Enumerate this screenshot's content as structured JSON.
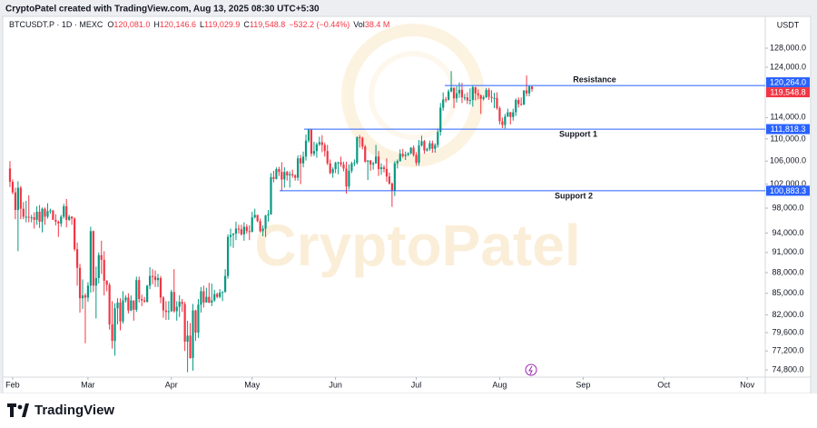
{
  "top_note": "CryptoPatel created with TradingView.com, Aug 13, 2025 08:30 UTC+5:30",
  "chart_data": {
    "type": "candlestick",
    "symbol": "BTCUSDT.P · 1D · MEXC",
    "ohlc_readout": [
      {
        "label": "O",
        "value": "120,081.0"
      },
      {
        "label": "H",
        "value": "120,146.6"
      },
      {
        "label": "L",
        "value": "119,029.9"
      },
      {
        "label": "C",
        "value": "119,548.8"
      }
    ],
    "change": "−532.2 (−0.44%)",
    "volume": {
      "label": "Vol",
      "value": "38.4 M"
    },
    "currency": "USDT",
    "watermark": "CryptoPatel",
    "up_color": "#089981",
    "down_color": "#f23645",
    "level_color": "#2962ff",
    "log_scale": true,
    "grid": false,
    "xlim": [
      -3.7,
      280.7
    ],
    "xticks": [
      {
        "value": 1,
        "label": "Feb"
      },
      {
        "value": 29,
        "label": "Mar"
      },
      {
        "value": 60,
        "label": "Apr"
      },
      {
        "value": 90,
        "label": "May"
      },
      {
        "value": 121,
        "label": "Jun"
      },
      {
        "value": 151,
        "label": "Jul"
      },
      {
        "value": 182,
        "label": "Aug"
      },
      {
        "value": 213,
        "label": "Sep"
      },
      {
        "value": 243,
        "label": "Oct"
      },
      {
        "value": 274,
        "label": "Nov"
      }
    ],
    "ylim": [
      73900,
      130950
    ],
    "yticks": [
      {
        "value": 128000,
        "label": "128,000.0"
      },
      {
        "value": 124000,
        "label": "124,000.0"
      },
      {
        "value": 114000,
        "label": "114,000.0"
      },
      {
        "value": 110000,
        "label": "110,000.0"
      },
      {
        "value": 106000,
        "label": "106,000.0"
      },
      {
        "value": 102000,
        "label": "102,000.0"
      },
      {
        "value": 98000,
        "label": "98,000.0"
      },
      {
        "value": 94000,
        "label": "94,000.0"
      },
      {
        "value": 91000,
        "label": "91,000.0"
      },
      {
        "value": 88000,
        "label": "88,000.0"
      },
      {
        "value": 85000,
        "label": "85,000.0"
      },
      {
        "value": 82000,
        "label": "82,000.0"
      },
      {
        "value": 79600,
        "label": "79,600.0"
      },
      {
        "value": 77200,
        "label": "77,200.0"
      },
      {
        "value": 74800,
        "label": "74,800.0"
      }
    ],
    "levels": [
      {
        "name": "Resistance",
        "value": 120264,
        "label": "120,264.0"
      },
      {
        "name": "Support 1",
        "value": 111818.3,
        "label": "111,818.3"
      },
      {
        "name": "Support 2",
        "value": 100883.3,
        "label": "100,883.3"
      }
    ],
    "last_price": {
      "value": 119548.8,
      "label": "119,548.8"
    },
    "ohlc": [
      [
        104700,
        106000,
        101500,
        102400
      ],
      [
        102400,
        102800,
        100300,
        100600
      ],
      [
        100600,
        101400,
        96200,
        97700
      ],
      [
        97700,
        102500,
        91200,
        101400
      ],
      [
        101400,
        101700,
        96200,
        97900
      ],
      [
        97900,
        99000,
        96200,
        96600
      ],
      [
        96600,
        99200,
        95700,
        96600
      ],
      [
        96600,
        100100,
        95700,
        96500
      ],
      [
        96500,
        96900,
        95700,
        96500
      ],
      [
        96500,
        97300,
        94700,
        96100
      ],
      [
        96100,
        98300,
        95300,
        97400
      ],
      [
        97400,
        98500,
        94800,
        95800
      ],
      [
        95800,
        98100,
        94100,
        97900
      ],
      [
        97900,
        98100,
        95300,
        96600
      ],
      [
        96600,
        98800,
        96300,
        97500
      ],
      [
        97500,
        97900,
        97100,
        97600
      ],
      [
        97600,
        97700,
        96100,
        96100
      ],
      [
        96100,
        97000,
        95200,
        95800
      ],
      [
        95800,
        96000,
        93400,
        95500
      ],
      [
        95500,
        96900,
        95000,
        96600
      ],
      [
        96600,
        98700,
        96300,
        98300
      ],
      [
        98300,
        99500,
        94900,
        96100
      ],
      [
        96100,
        96900,
        95900,
        96600
      ],
      [
        96600,
        96700,
        95300,
        96300
      ],
      [
        96300,
        96500,
        91200,
        91500
      ],
      [
        91500,
        92500,
        86100,
        88700
      ],
      [
        88700,
        89300,
        82300,
        84300
      ],
      [
        84300,
        87000,
        82800,
        84700
      ],
      [
        84700,
        85000,
        78200,
        84400
      ],
      [
        84400,
        86600,
        83800,
        86100
      ],
      [
        86100,
        95000,
        85100,
        94300
      ],
      [
        94300,
        94400,
        85200,
        86100
      ],
      [
        86100,
        88900,
        81500,
        87200
      ],
      [
        87200,
        91000,
        86400,
        90600
      ],
      [
        90600,
        92800,
        87800,
        89900
      ],
      [
        89900,
        91200,
        84700,
        86800
      ],
      [
        86800,
        86900,
        85300,
        86200
      ],
      [
        86200,
        86500,
        80000,
        80700
      ],
      [
        80700,
        83900,
        77500,
        78500
      ],
      [
        78500,
        83600,
        76600,
        82900
      ],
      [
        82900,
        84300,
        80700,
        83700
      ],
      [
        83700,
        84300,
        79900,
        81100
      ],
      [
        81100,
        85300,
        80800,
        84000
      ],
      [
        84000,
        84700,
        83700,
        84400
      ],
      [
        84400,
        85000,
        82200,
        82600
      ],
      [
        82600,
        84700,
        82500,
        84000
      ],
      [
        84000,
        84000,
        81200,
        82700
      ],
      [
        82700,
        87400,
        82400,
        86900
      ],
      [
        86900,
        87400,
        83700,
        84200
      ],
      [
        84200,
        84800,
        83200,
        84000
      ],
      [
        84000,
        84500,
        83700,
        83800
      ],
      [
        83800,
        86200,
        83700,
        86100
      ],
      [
        86100,
        88800,
        85600,
        87500
      ],
      [
        87500,
        88500,
        86300,
        87400
      ],
      [
        87400,
        88300,
        85900,
        86900
      ],
      [
        86900,
        87800,
        85900,
        87200
      ],
      [
        87200,
        87500,
        83600,
        84400
      ],
      [
        84400,
        84600,
        81600,
        82600
      ],
      [
        82600,
        83900,
        81300,
        82400
      ],
      [
        82400,
        83900,
        81300,
        82500
      ],
      [
        82500,
        85500,
        82400,
        85200
      ],
      [
        85200,
        88500,
        82300,
        82500
      ],
      [
        82500,
        83900,
        81200,
        83100
      ],
      [
        83100,
        84700,
        81700,
        83800
      ],
      [
        83800,
        84200,
        82400,
        83500
      ],
      [
        83500,
        83800,
        77200,
        78400
      ],
      [
        78400,
        81200,
        74500,
        79200
      ],
      [
        79200,
        80900,
        76200,
        76300
      ],
      [
        76300,
        83500,
        74700,
        82600
      ],
      [
        82600,
        82700,
        78500,
        79600
      ],
      [
        79600,
        84200,
        78900,
        83400
      ],
      [
        83400,
        85900,
        82300,
        85300
      ],
      [
        85300,
        86100,
        83000,
        83700
      ],
      [
        83700,
        85800,
        83700,
        84500
      ],
      [
        84500,
        86500,
        83600,
        83700
      ],
      [
        83700,
        86400,
        83200,
        84000
      ],
      [
        84000,
        85500,
        83800,
        84900
      ],
      [
        84900,
        85100,
        84300,
        84500
      ],
      [
        84500,
        85600,
        84300,
        85100
      ],
      [
        85100,
        85300,
        83900,
        85200
      ],
      [
        85200,
        88500,
        85100,
        87500
      ],
      [
        87500,
        93800,
        87100,
        93400
      ],
      [
        93400,
        94700,
        91900,
        93700
      ],
      [
        93700,
        94000,
        91700,
        93900
      ],
      [
        93900,
        95800,
        92900,
        94700
      ],
      [
        94700,
        95300,
        93900,
        94600
      ],
      [
        94600,
        95300,
        93600,
        93800
      ],
      [
        93800,
        95700,
        92800,
        95000
      ],
      [
        95000,
        95400,
        93900,
        94300
      ],
      [
        94300,
        95200,
        92900,
        94200
      ],
      [
        94200,
        97400,
        94100,
        96500
      ],
      [
        96500,
        97900,
        96300,
        96900
      ],
      [
        96900,
        96900,
        95700,
        95900
      ],
      [
        95900,
        96300,
        94100,
        94300
      ],
      [
        94300,
        95200,
        93500,
        94700
      ],
      [
        94700,
        96900,
        93400,
        96800
      ],
      [
        96800,
        97700,
        95800,
        97000
      ],
      [
        97000,
        103900,
        96900,
        103200
      ],
      [
        103200,
        104300,
        102300,
        102900
      ],
      [
        102900,
        104900,
        102800,
        104600
      ],
      [
        104600,
        105000,
        103400,
        104100
      ],
      [
        104100,
        105800,
        100800,
        102800
      ],
      [
        102800,
        104900,
        101400,
        104100
      ],
      [
        104100,
        104300,
        102600,
        103500
      ],
      [
        103500,
        104200,
        101400,
        103700
      ],
      [
        103700,
        104500,
        103100,
        103500
      ],
      [
        103500,
        103700,
        102600,
        103100
      ],
      [
        103100,
        107000,
        102600,
        106500
      ],
      [
        106500,
        107100,
        102000,
        105600
      ],
      [
        105600,
        107700,
        104900,
        106800
      ],
      [
        106800,
        110800,
        106100,
        109700
      ],
      [
        109700,
        111900,
        109300,
        111700
      ],
      [
        111700,
        111800,
        106800,
        107300
      ],
      [
        107300,
        109500,
        106900,
        107800
      ],
      [
        107800,
        109300,
        106600,
        109000
      ],
      [
        109000,
        110400,
        108700,
        109400
      ],
      [
        109400,
        110700,
        107600,
        108900
      ],
      [
        108900,
        109300,
        106800,
        107800
      ],
      [
        107800,
        108900,
        105300,
        105600
      ],
      [
        105600,
        106300,
        103700,
        103900
      ],
      [
        103900,
        104900,
        103100,
        104600
      ],
      [
        104600,
        105900,
        103900,
        105700
      ],
      [
        105700,
        105900,
        103700,
        105800
      ],
      [
        105800,
        106800,
        105000,
        105400
      ],
      [
        105400,
        105900,
        104200,
        104700
      ],
      [
        104700,
        105900,
        100400,
        101600
      ],
      [
        101600,
        105400,
        101100,
        104300
      ],
      [
        104300,
        105900,
        103900,
        105600
      ],
      [
        105600,
        106300,
        105100,
        105700
      ],
      [
        105700,
        110500,
        105400,
        110300
      ],
      [
        110300,
        110700,
        108400,
        110200
      ],
      [
        110200,
        110400,
        108100,
        108600
      ],
      [
        108600,
        108900,
        105700,
        105900
      ],
      [
        105900,
        106200,
        102700,
        106100
      ],
      [
        106100,
        106200,
        104300,
        105400
      ],
      [
        105400,
        105900,
        104500,
        105600
      ],
      [
        105600,
        108900,
        105500,
        106800
      ],
      [
        106800,
        107800,
        103400,
        104600
      ],
      [
        104600,
        105600,
        103600,
        104900
      ],
      [
        104900,
        105300,
        104000,
        104600
      ],
      [
        104600,
        106500,
        102400,
        103300
      ],
      [
        103300,
        104000,
        101900,
        102100
      ],
      [
        102100,
        102300,
        98200,
        100900
      ],
      [
        100900,
        106000,
        100000,
        105600
      ],
      [
        105600,
        106300,
        104700,
        106000
      ],
      [
        106000,
        108100,
        105900,
        107300
      ],
      [
        107300,
        108200,
        106600,
        106900
      ],
      [
        106900,
        107700,
        106200,
        107100
      ],
      [
        107100,
        107600,
        106900,
        107400
      ],
      [
        107400,
        108500,
        107200,
        108400
      ],
      [
        108400,
        108800,
        106800,
        107100
      ],
      [
        107100,
        107600,
        105200,
        105700
      ],
      [
        105700,
        109800,
        105200,
        108800
      ],
      [
        108800,
        110600,
        108600,
        109600
      ],
      [
        109600,
        109800,
        107300,
        107900
      ],
      [
        107900,
        108400,
        107700,
        108200
      ],
      [
        108200,
        109700,
        107800,
        109200
      ],
      [
        109200,
        109700,
        107500,
        108200
      ],
      [
        108200,
        109200,
        107500,
        108900
      ],
      [
        108900,
        111900,
        108400,
        111300
      ],
      [
        111300,
        116800,
        110600,
        115900
      ],
      [
        115900,
        118900,
        115300,
        117500
      ],
      [
        117500,
        118000,
        116900,
        117400
      ],
      [
        117400,
        119500,
        117300,
        119100
      ],
      [
        119100,
        123200,
        118900,
        119800
      ],
      [
        119800,
        119900,
        115800,
        117700
      ],
      [
        117700,
        120100,
        116900,
        118700
      ],
      [
        118700,
        120900,
        117800,
        119400
      ],
      [
        119400,
        120800,
        116800,
        117900
      ],
      [
        117900,
        118600,
        117300,
        117900
      ],
      [
        117900,
        118900,
        116600,
        117300
      ],
      [
        117300,
        119700,
        116500,
        117400
      ],
      [
        117400,
        120200,
        116100,
        119900
      ],
      [
        119900,
        120000,
        117300,
        118700
      ],
      [
        118700,
        119500,
        117500,
        118300
      ],
      [
        118300,
        118500,
        114700,
        117600
      ],
      [
        117600,
        118300,
        117300,
        117900
      ],
      [
        117900,
        119800,
        117800,
        119400
      ],
      [
        119400,
        119800,
        117400,
        118000
      ],
      [
        118000,
        119300,
        116900,
        117800
      ],
      [
        117800,
        118800,
        115800,
        117800
      ],
      [
        117800,
        118900,
        115500,
        115800
      ],
      [
        115800,
        116100,
        112700,
        113300
      ],
      [
        113300,
        114000,
        112000,
        112600
      ],
      [
        112600,
        114700,
        111900,
        114200
      ],
      [
        114200,
        115700,
        114100,
        115000
      ],
      [
        115000,
        115100,
        112700,
        114100
      ],
      [
        114100,
        115700,
        113400,
        115000
      ],
      [
        115000,
        117700,
        114300,
        117400
      ],
      [
        117400,
        117900,
        115900,
        116600
      ],
      [
        116600,
        117900,
        116300,
        116500
      ],
      [
        116500,
        119300,
        116400,
        119300
      ],
      [
        119300,
        122300,
        118100,
        118700
      ],
      [
        118700,
        120300,
        118100,
        120081
      ],
      [
        120081,
        120146.6,
        119029.9,
        119548.8
      ]
    ]
  },
  "footer": {
    "brand": "TradingView"
  }
}
